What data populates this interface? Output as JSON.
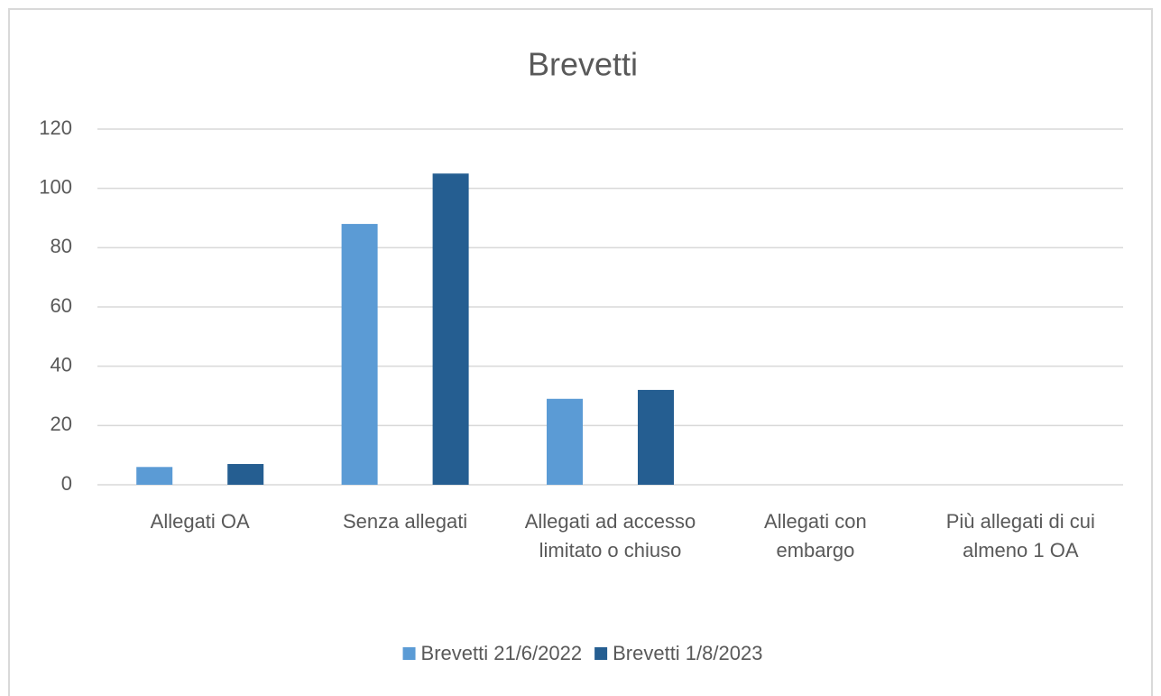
{
  "chart_data": {
    "type": "bar",
    "title": "Brevetti",
    "categories": [
      "Allegati OA",
      "Senza allegati",
      "Allegati ad accesso limitato o chiuso",
      "Allegati con embargo",
      "Più allegati di cui almeno 1 OA"
    ],
    "series": [
      {
        "name": "Brevetti 21/6/2022",
        "color": "#5b9bd5",
        "values": [
          6,
          88,
          29,
          0,
          0
        ]
      },
      {
        "name": "Brevetti 1/8/2023",
        "color": "#255e91",
        "values": [
          7,
          105,
          32,
          0,
          0
        ]
      }
    ],
    "ylim": [
      0,
      120
    ],
    "yticks": [
      0,
      20,
      40,
      60,
      80,
      100,
      120
    ],
    "grid": true,
    "legend": "bottom"
  }
}
